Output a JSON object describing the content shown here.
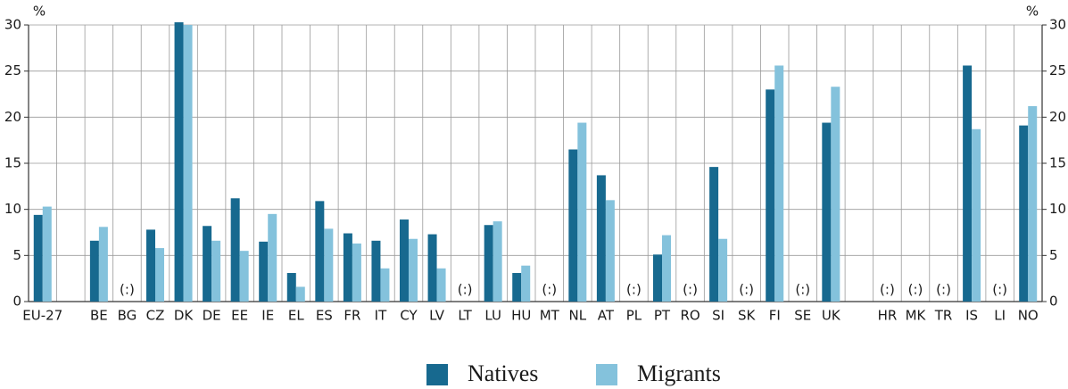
{
  "chart_data": {
    "type": "bar",
    "y_label": "%",
    "categories": [
      "EU-27",
      null,
      "BE",
      "BG",
      "CZ",
      "DK",
      "DE",
      "EE",
      "IE",
      "EL",
      "ES",
      "FR",
      "IT",
      "CY",
      "LV",
      "LT",
      "LU",
      "HU",
      "MT",
      "NL",
      "AT",
      "PL",
      "PT",
      "RO",
      "SI",
      "SK",
      "FI",
      "SE",
      "UK",
      null,
      "HR",
      "MK",
      "TR",
      "IS",
      "LI",
      "NO"
    ],
    "series": [
      {
        "name": "Natives",
        "color": "#17698f",
        "values": [
          9.4,
          null,
          6.6,
          null,
          7.8,
          30.3,
          8.2,
          11.2,
          6.5,
          3.1,
          10.9,
          7.4,
          6.6,
          8.9,
          7.3,
          null,
          8.3,
          3.1,
          null,
          16.5,
          13.7,
          null,
          5.1,
          null,
          14.6,
          null,
          23.0,
          null,
          19.4,
          null,
          null,
          null,
          null,
          25.6,
          null,
          19.1
        ],
        "value_labels": [
          null,
          null,
          null,
          "(:)",
          null,
          null,
          null,
          null,
          null,
          null,
          null,
          null,
          null,
          null,
          null,
          "(:)",
          null,
          null,
          "(:)",
          null,
          null,
          "(:)",
          null,
          "(:)",
          null,
          "(:)",
          null,
          "(:)",
          null,
          null,
          "(:)",
          "(:)",
          "(:)",
          null,
          "(:)",
          null
        ]
      },
      {
        "name": "Migrants",
        "color": "#84c2dc",
        "values": [
          10.3,
          null,
          8.1,
          null,
          5.8,
          30.0,
          6.6,
          5.5,
          9.5,
          1.6,
          7.9,
          6.3,
          3.6,
          6.8,
          3.6,
          null,
          8.7,
          3.9,
          null,
          19.4,
          11.0,
          null,
          7.2,
          null,
          6.8,
          null,
          25.6,
          null,
          23.3,
          null,
          null,
          null,
          null,
          18.7,
          null,
          21.2
        ]
      }
    ],
    "ylim": [
      0,
      30
    ],
    "yticks": [
      0,
      5,
      10,
      15,
      20,
      25,
      30
    ],
    "grid": true,
    "legend": "bottom"
  }
}
